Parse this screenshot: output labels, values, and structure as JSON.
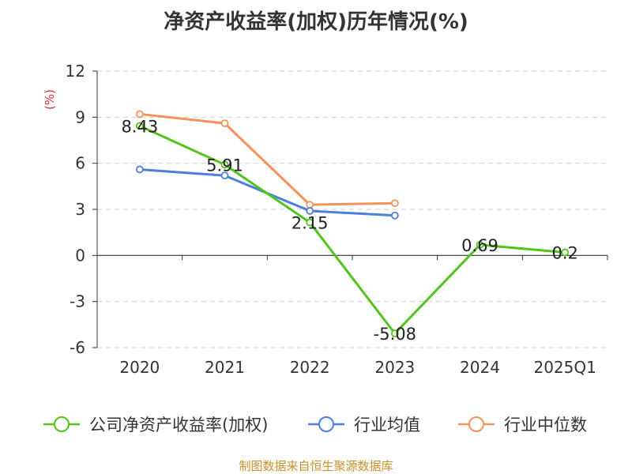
{
  "chart_data": {
    "type": "line",
    "title": "净资产收益率(加权)历年情况(%)",
    "ylabel": "(%)",
    "xlabel": "",
    "categories": [
      "2020",
      "2021",
      "2022",
      "2023",
      "2024",
      "2025Q1"
    ],
    "ylim": [
      -6,
      12
    ],
    "yticks": [
      "-6",
      "-3",
      "0",
      "3",
      "6",
      "9",
      "12"
    ],
    "grid": "horizontal dashed",
    "legend_position": "bottom",
    "series": [
      {
        "name": "公司净资产收益率(加权)",
        "color": "#52c41a",
        "values": [
          8.43,
          5.91,
          2.15,
          -5.08,
          0.69,
          0.2
        ],
        "labels": [
          "8.43",
          "5.91",
          "2.15",
          "-5.08",
          "0.69",
          "0.2"
        ]
      },
      {
        "name": "行业均值",
        "color": "#4a7fe0",
        "values": [
          5.6,
          5.2,
          2.9,
          2.6,
          null,
          null
        ]
      },
      {
        "name": "行业中位数",
        "color": "#f5915a",
        "values": [
          9.2,
          8.6,
          3.3,
          3.4,
          null,
          null
        ]
      }
    ],
    "source": "制图数据来自恒生聚源数据库"
  }
}
